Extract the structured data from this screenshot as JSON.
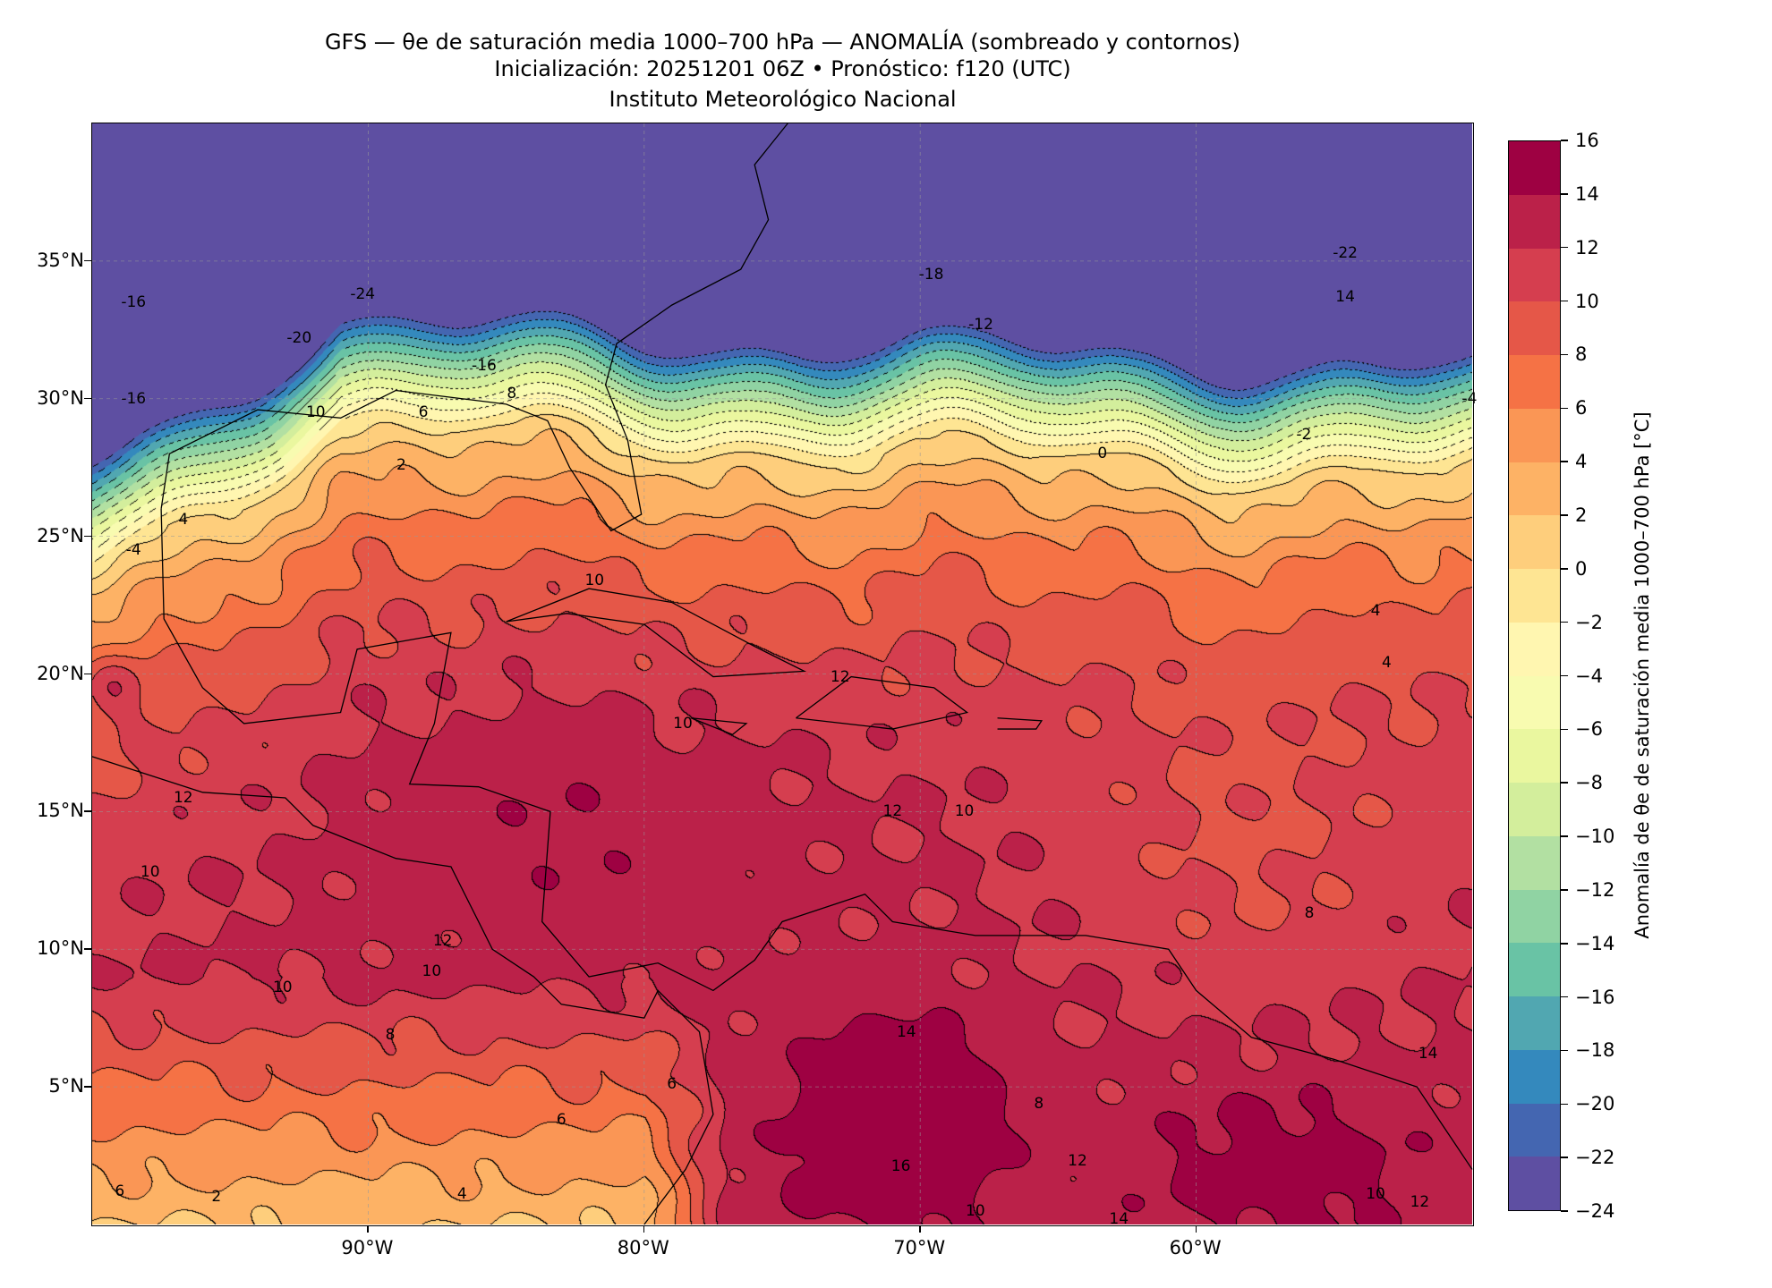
{
  "header": {
    "title_line1": "GFS — θe de saturación media 1000–700 hPa — ANOMALÍA (sombreado y contornos)",
    "title_line2": "Inicialización: 20251201 06Z   •   Pronóstico: f120 (UTC)",
    "title_line3": "Instituto Meteorológico Nacional"
  },
  "chart_data": {
    "type": "heatmap",
    "extent": {
      "lon": [
        -100,
        -50
      ],
      "lat": [
        0,
        40
      ]
    },
    "lat_ticks": [
      {
        "value": 35,
        "label": "35°N"
      },
      {
        "value": 30,
        "label": "30°N"
      },
      {
        "value": 25,
        "label": "25°N"
      },
      {
        "value": 20,
        "label": "20°N"
      },
      {
        "value": 15,
        "label": "15°N"
      },
      {
        "value": 10,
        "label": "10°N"
      },
      {
        "value": 5,
        "label": "5°N"
      }
    ],
    "lon_ticks": [
      {
        "value": -90,
        "label": "90°W"
      },
      {
        "value": -80,
        "label": "80°W"
      },
      {
        "value": -70,
        "label": "70°W"
      },
      {
        "value": -60,
        "label": "60°W"
      }
    ],
    "grid": true,
    "colorbar": {
      "label": "Anomalía de θe de saturación media 1000–700 hPa [°C]",
      "levels": [
        -24,
        -22,
        -20,
        -18,
        -16,
        -14,
        -12,
        -10,
        -8,
        -6,
        -4,
        -2,
        0,
        2,
        4,
        6,
        8,
        10,
        12,
        14,
        16
      ],
      "tick_labels": [
        "−24",
        "−22",
        "−20",
        "−18",
        "−16",
        "−14",
        "−12",
        "−10",
        "−8",
        "−6",
        "−4",
        "−2",
        "0",
        "2",
        "4",
        "6",
        "8",
        "10",
        "12",
        "14",
        "16"
      ],
      "colors": [
        "#5e4fa2",
        "#4466b1",
        "#3489bd",
        "#51a7b1",
        "#69c3a5",
        "#90d3a3",
        "#b2e0a2",
        "#d3ee9c",
        "#eaf79f",
        "#f8fbb0",
        "#fff6b0",
        "#fee593",
        "#fece7c",
        "#fdb265",
        "#fa9655",
        "#f57245",
        "#e55748",
        "#d53e4f",
        "#bb2149",
        "#9e0142"
      ]
    },
    "contour_labels": [
      {
        "value": "-24",
        "lon": -90.2,
        "lat": 33.8
      },
      {
        "value": "-20",
        "lon": -92.5,
        "lat": 32.2
      },
      {
        "value": "-16",
        "lon": -85.8,
        "lat": 31.2
      },
      {
        "value": "-16",
        "lon": -98.5,
        "lat": 33.5
      },
      {
        "value": "-16",
        "lon": -98.5,
        "lat": 30
      },
      {
        "value": "-18",
        "lon": -69.6,
        "lat": 34.5
      },
      {
        "value": "-12",
        "lon": -67.8,
        "lat": 32.7
      },
      {
        "value": "-22",
        "lon": -54.6,
        "lat": 35.3
      },
      {
        "value": "14",
        "lon": -54.6,
        "lat": 33.7
      },
      {
        "value": "-4",
        "lon": -50.1,
        "lat": 30.0
      },
      {
        "value": "-2",
        "lon": -56.1,
        "lat": 28.7
      },
      {
        "value": "0",
        "lon": -63.4,
        "lat": 28.0
      },
      {
        "value": "10",
        "lon": -91.9,
        "lat": 29.5
      },
      {
        "value": "6",
        "lon": -88,
        "lat": 29.5
      },
      {
        "value": "8",
        "lon": -84.8,
        "lat": 30.2
      },
      {
        "value": "2",
        "lon": -88.8,
        "lat": 27.6
      },
      {
        "value": "4",
        "lon": -96.7,
        "lat": 25.6
      },
      {
        "value": "-4",
        "lon": -98.5,
        "lat": 24.5
      },
      {
        "value": "10",
        "lon": -81.8,
        "lat": 23.4
      },
      {
        "value": "12",
        "lon": -72.9,
        "lat": 19.9
      },
      {
        "value": "10",
        "lon": -78.6,
        "lat": 18.2
      },
      {
        "value": "12",
        "lon": -71,
        "lat": 15
      },
      {
        "value": "10",
        "lon": -68.4,
        "lat": 15.0
      },
      {
        "value": "12",
        "lon": -96.7,
        "lat": 15.5
      },
      {
        "value": "10",
        "lon": -97.9,
        "lat": 12.8
      },
      {
        "value": "12",
        "lon": -87.3,
        "lat": 10.3
      },
      {
        "value": "10",
        "lon": -87.7,
        "lat": 9.2
      },
      {
        "value": "10",
        "lon": -93.1,
        "lat": 8.6
      },
      {
        "value": "8",
        "lon": -89.2,
        "lat": 6.9
      },
      {
        "value": "8",
        "lon": -55.9,
        "lat": 11.3
      },
      {
        "value": "8",
        "lon": -65.7,
        "lat": 4.4
      },
      {
        "value": "6",
        "lon": -79,
        "lat": 5.1
      },
      {
        "value": "6",
        "lon": -83,
        "lat": 3.8
      },
      {
        "value": "4",
        "lon": -86.6,
        "lat": 1.1
      },
      {
        "value": "2",
        "lon": -95.5,
        "lat": 1.0
      },
      {
        "value": "16",
        "lon": -70.7,
        "lat": 2.1
      },
      {
        "value": "14",
        "lon": -70.5,
        "lat": 7.0
      },
      {
        "value": "12",
        "lon": -64.3,
        "lat": 2.3
      },
      {
        "value": "14",
        "lon": -62.8,
        "lat": 0.2
      },
      {
        "value": "10",
        "lon": -68,
        "lat": 0.5
      },
      {
        "value": "10",
        "lon": -53.5,
        "lat": 1.1
      },
      {
        "value": "12",
        "lon": -51.9,
        "lat": 0.8
      },
      {
        "value": "14",
        "lon": -51.6,
        "lat": 6.2
      },
      {
        "value": "4",
        "lon": -53.5,
        "lat": 22.3
      },
      {
        "value": "4",
        "lon": -53.1,
        "lat": 20.4
      },
      {
        "value": "6",
        "lon": -99,
        "lat": 1.2
      }
    ]
  }
}
